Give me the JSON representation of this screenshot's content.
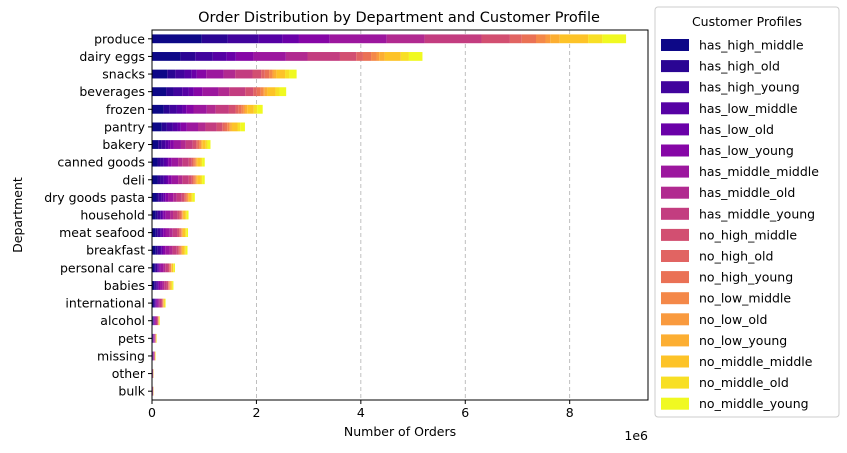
{
  "chart_data": {
    "type": "bar",
    "orientation": "horizontal",
    "stacked": true,
    "title": "Order Distribution by Department and Customer Profile",
    "xlabel": "Number of Orders",
    "ylabel": "Department",
    "x_scale_label": "1e6",
    "xlim": [
      0,
      9.5
    ],
    "x_ticks": [
      "0",
      "2",
      "4",
      "6",
      "8"
    ],
    "x_grid": true,
    "legend": {
      "title": "Customer Profiles",
      "placement": "outside-right"
    },
    "categories": [
      "produce",
      "dairy eggs",
      "snacks",
      "beverages",
      "frozen",
      "pantry",
      "bakery",
      "canned goods",
      "deli",
      "dry goods pasta",
      "household",
      "meat seafood",
      "breakfast",
      "personal care",
      "babies",
      "international",
      "alcohol",
      "pets",
      "missing",
      "other",
      "bulk"
    ],
    "totals": [
      9.08,
      5.18,
      2.77,
      2.57,
      2.12,
      1.78,
      1.12,
      1.01,
      1.01,
      0.82,
      0.7,
      0.69,
      0.68,
      0.44,
      0.41,
      0.26,
      0.15,
      0.09,
      0.07,
      0.03,
      0.03
    ],
    "series": [
      {
        "name": "has_high_middle",
        "color": "#0d0887"
      },
      {
        "name": "has_high_old",
        "color": "#2a0593"
      },
      {
        "name": "has_high_young",
        "color": "#41049d"
      },
      {
        "name": "has_low_middle",
        "color": "#5601a4"
      },
      {
        "name": "has_low_old",
        "color": "#6a00a8"
      },
      {
        "name": "has_low_young",
        "color": "#8606a6"
      },
      {
        "name": "has_middle_middle",
        "color": "#9c179e"
      },
      {
        "name": "has_middle_old",
        "color": "#b12a90"
      },
      {
        "name": "has_middle_young",
        "color": "#c33d80"
      },
      {
        "name": "no_high_middle",
        "color": "#d24f71"
      },
      {
        "name": "no_high_old",
        "color": "#e16462"
      },
      {
        "name": "no_high_young",
        "color": "#ea7155"
      },
      {
        "name": "no_low_middle",
        "color": "#f48849"
      },
      {
        "name": "no_low_old",
        "color": "#f99a3e"
      },
      {
        "name": "no_low_young",
        "color": "#fcae32"
      },
      {
        "name": "no_middle_middle",
        "color": "#fdc328"
      },
      {
        "name": "no_middle_old",
        "color": "#f8df25"
      },
      {
        "name": "no_middle_young",
        "color": "#f0f921"
      }
    ],
    "segment_shares": [
      0.105,
      0.055,
      0.065,
      0.05,
      0.035,
      0.065,
      0.12,
      0.08,
      0.12,
      0.06,
      0.025,
      0.03,
      0.02,
      0.01,
      0.02,
      0.06,
      0.03,
      0.05
    ],
    "value_units": "orders (x1e6)"
  }
}
